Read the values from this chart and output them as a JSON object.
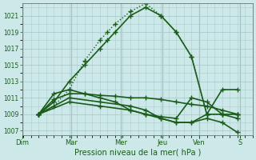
{
  "xlabel": "Pression niveau de la mer( hPa )",
  "background_color": "#cce8e8",
  "grid_color": "#aacccc",
  "line_color": "#1a5c1a",
  "ylim": [
    1006.5,
    1022.5
  ],
  "yticks": [
    1007,
    1009,
    1011,
    1013,
    1015,
    1017,
    1019,
    1021
  ],
  "day_labels": [
    "Dim",
    "Mar",
    "Mer",
    "Jeu",
    "Ven",
    "S"
  ],
  "day_tick_positions": [
    35,
    95,
    155,
    205,
    250,
    300
  ],
  "xlim": [
    0,
    14
  ],
  "series": [
    {
      "x": [
        0,
        1,
        2,
        3,
        4,
        4.5,
        5,
        6,
        7,
        8,
        9,
        10,
        11,
        12,
        13
      ],
      "y": [
        1009,
        1010.5,
        1013,
        1015,
        1017,
        1018,
        1019,
        1021,
        1022,
        1021,
        1019,
        1016,
        1009,
        1009,
        1009
      ],
      "marker": "+",
      "markersize": 4,
      "linewidth": 1.2
    },
    {
      "x": [
        0,
        1,
        2,
        3,
        4,
        4.5,
        5,
        6,
        7,
        8,
        9,
        10,
        11,
        12,
        13
      ],
      "y": [
        1009,
        1010,
        1012,
        1015.5,
        1018,
        1019,
        1020,
        1021.5,
        1022.5,
        1021,
        1019,
        1016,
        1009,
        1009,
        1009
      ],
      "marker": "+",
      "markersize": 4,
      "linewidth": 1.0,
      "linestyle": "dotted"
    },
    {
      "x": [
        0,
        1,
        2,
        3,
        4,
        5,
        6,
        7,
        8,
        9,
        10,
        11,
        12,
        13
      ],
      "y": [
        1009,
        1010.8,
        1011.5,
        1011.5,
        1011.3,
        1011.2,
        1011,
        1011,
        1010.8,
        1010.5,
        1010.2,
        1010,
        1009.5,
        1009
      ],
      "marker": "+",
      "markersize": 4,
      "linewidth": 1.2
    },
    {
      "x": [
        0,
        1,
        2,
        3,
        4,
        5,
        6,
        7,
        8,
        9,
        10,
        11,
        12,
        13
      ],
      "y": [
        1009,
        1011.5,
        1012,
        1011.5,
        1011,
        1010.5,
        1009.5,
        1009,
        1008.7,
        1008.5,
        1011,
        1010.5,
        1009,
        1008.5
      ],
      "marker": "+",
      "markersize": 4,
      "linewidth": 1.2
    },
    {
      "x": [
        0,
        2,
        4,
        6,
        7,
        8,
        9,
        10,
        11,
        12,
        13
      ],
      "y": [
        1009,
        1011,
        1010.5,
        1010,
        1009.5,
        1008.5,
        1008,
        1008,
        1009,
        1012,
        1012
      ],
      "marker": "+",
      "markersize": 4,
      "linewidth": 1.2
    },
    {
      "x": [
        0,
        2,
        4,
        6,
        7,
        8,
        9,
        10,
        11,
        12,
        13
      ],
      "y": [
        1009,
        1010.5,
        1010,
        1009.5,
        1009,
        1008.5,
        1008,
        1008,
        1008.5,
        1008,
        1006.8
      ],
      "marker": "+",
      "markersize": 4,
      "linewidth": 1.2
    }
  ]
}
